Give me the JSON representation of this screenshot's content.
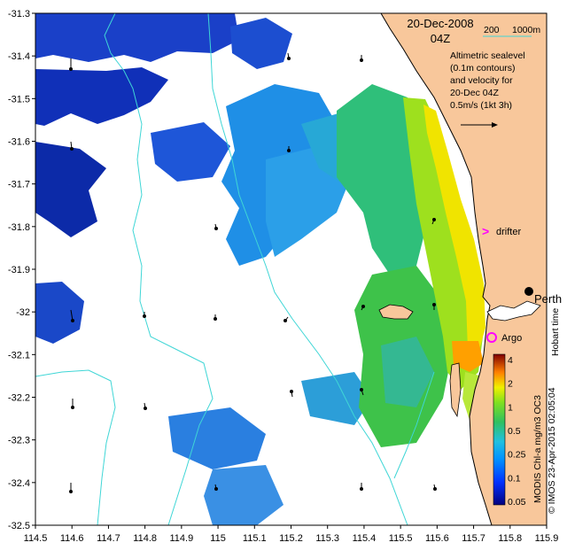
{
  "header": {
    "date": "20-Dec-2008",
    "time": "04Z"
  },
  "depth_key": {
    "a": "200",
    "b": "1000m",
    "color": "#3fd6d6"
  },
  "annotation": {
    "lines": [
      "Altimetric sealevel",
      "(0.1m contours)",
      "and velocity for",
      "20-Dec 04Z"
    ],
    "scale": "0.5m/s (1kt 3h)"
  },
  "labels": {
    "drifter": "drifter",
    "argo": "Argo",
    "perth": "Perth",
    "hobart": "Hobart time"
  },
  "credit_1": "MODIS Chl-a mg/m3 OC3",
  "credit_2": "© IMOS 23-Apr-2015 02:05:04",
  "colors": {
    "land": "#f8c79b",
    "drifter": "#ff00ff",
    "argo": "#ff00ff",
    "contour": "#3fd6d6"
  },
  "chart_data": {
    "type": "heatmap",
    "xlim": [
      114.5,
      115.9
    ],
    "ylim": [
      -32.5,
      -31.3
    ],
    "x_ticks": [
      "114.5",
      "114.6",
      "114.7",
      "114.8",
      "114.9",
      "115",
      "115.1",
      "115.2",
      "115.3",
      "115.4",
      "115.5",
      "115.6",
      "115.7",
      "115.8",
      "115.9"
    ],
    "y_ticks": [
      "-31.3",
      "-31.4",
      "-31.5",
      "-31.6",
      "-31.7",
      "-31.8",
      "-31.9",
      "-32",
      "-32.1",
      "-32.2",
      "-32.3",
      "-32.4",
      "-32.5"
    ],
    "colorbar": {
      "label": "MODIS Chl-a mg/m3 OC3",
      "ticks": [
        "4",
        "2",
        "1",
        "0.5",
        "0.25",
        "0.1",
        "0.05"
      ]
    },
    "points": [
      {
        "name": "drifter",
        "lon": 115.75,
        "lat": -31.81
      },
      {
        "name": "Argo",
        "lon": 115.755,
        "lat": -32.08
      },
      {
        "name": "Perth",
        "lon": 115.86,
        "lat": -31.95
      }
    ]
  }
}
